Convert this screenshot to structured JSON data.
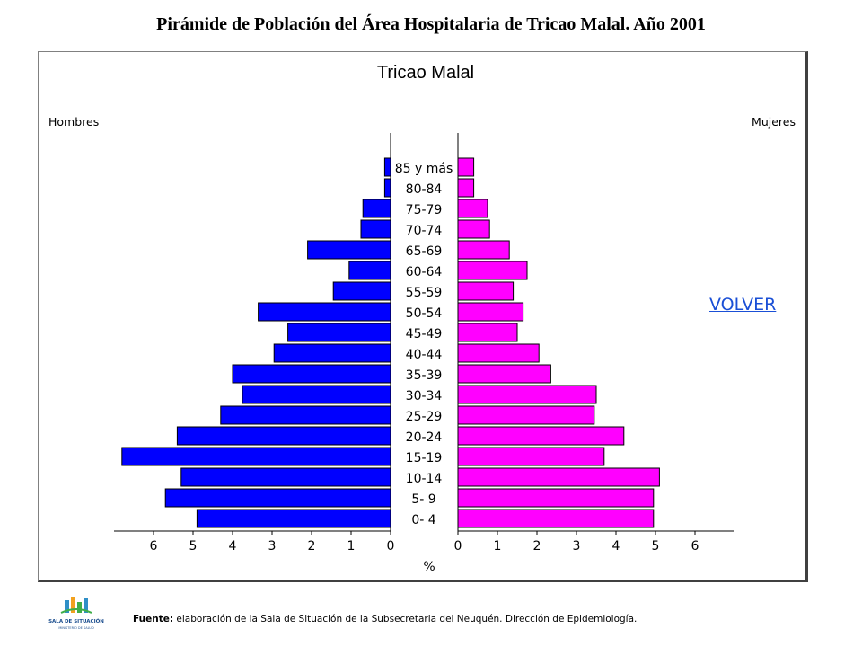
{
  "page": {
    "title": "Pirámide de Población del Área Hospitalaria de Tricao Malal. Año 2001",
    "volver_link": "VOLVER",
    "footer_label": "Fuente:",
    "footer_text": " elaboración de la Sala de Situación de la Subsecretaria del Neuquén. Dirección de Epidemiología.",
    "logo_text_main": "SALA DE SITUACIÓN",
    "logo_text_sub": "MINISTERIO DE SALUD"
  },
  "chart_data": {
    "type": "bar",
    "title": "Tricao Malal",
    "xlabel": "%",
    "left_label": "Hombres",
    "right_label": "Mujeres",
    "categories": [
      "85 y más",
      "80-84",
      "75-79",
      "70-74",
      "65-69",
      "60-64",
      "55-59",
      "50-54",
      "45-49",
      "40-44",
      "35-39",
      "30-34",
      "25-29",
      "20-24",
      "15-19",
      "10-14",
      "5- 9",
      "0- 4"
    ],
    "series": [
      {
        "name": "Hombres",
        "color": "#0000ff",
        "values": [
          0.15,
          0.15,
          0.7,
          0.75,
          2.1,
          1.05,
          1.45,
          3.35,
          2.6,
          2.95,
          4.0,
          3.75,
          4.3,
          5.4,
          6.8,
          5.3,
          5.7,
          4.9
        ]
      },
      {
        "name": "Mujeres",
        "color": "#ff00ff",
        "values": [
          0.4,
          0.4,
          0.75,
          0.8,
          1.3,
          1.75,
          1.4,
          1.65,
          1.5,
          2.05,
          2.35,
          3.5,
          3.45,
          4.2,
          3.7,
          5.1,
          4.95,
          4.95
        ]
      }
    ],
    "left_ticks": [
      "6",
      "5",
      "4",
      "3",
      "2",
      "1",
      "0"
    ],
    "right_ticks": [
      "0",
      "1",
      "2",
      "3",
      "4",
      "5",
      "6"
    ],
    "xlim": [
      0,
      7
    ]
  }
}
